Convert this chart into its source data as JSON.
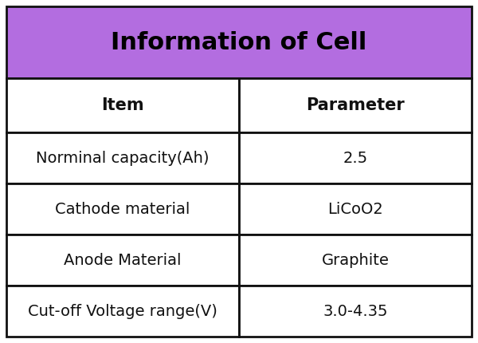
{
  "title": "Information of Cell",
  "title_bg_color": "#b36de0",
  "title_text_color": "#000000",
  "header_row": [
    "Item",
    "Parameter"
  ],
  "data_rows": [
    [
      "Norminal capacity(Ah)",
      "2.5"
    ],
    [
      "Cathode material",
      "LiCoO2"
    ],
    [
      "Anode Material",
      "Graphite"
    ],
    [
      "Cut-off Voltage range(V)",
      "3.0-4.35"
    ]
  ],
  "col_split": 0.5,
  "header_bg_color": "#ffffff",
  "row_bg_color": "#ffffff",
  "border_color": "#111111",
  "header_font_size": 15,
  "data_font_size": 14,
  "title_font_size": 22,
  "fig_width": 6.0,
  "fig_height": 4.3,
  "dpi": 100
}
